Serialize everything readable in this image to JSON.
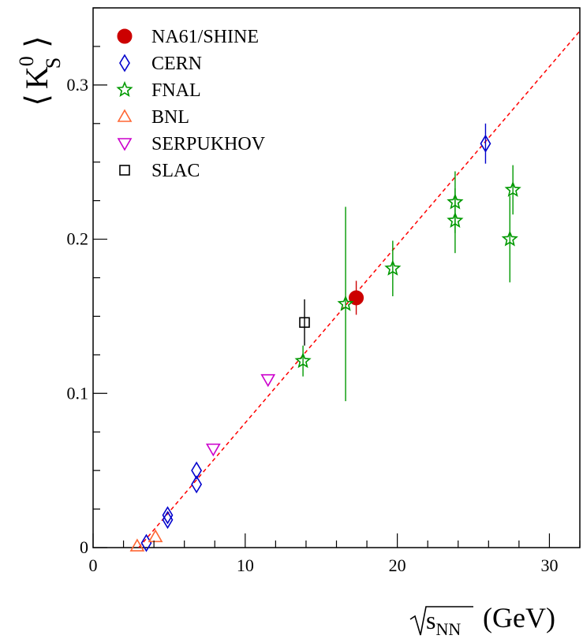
{
  "chart_data": {
    "type": "scatter",
    "title": "",
    "xlabel": {
      "sqrt": "s",
      "sub": "NN",
      "unit": "(GeV)"
    },
    "ylabel": {
      "open": "⟨",
      "main": "K",
      "sup": "0",
      "sub": "S",
      "close": "⟩"
    },
    "xlim": [
      0,
      32
    ],
    "ylim": [
      0,
      0.35
    ],
    "x_ticks": [
      0,
      10,
      20,
      30
    ],
    "x_tick_labels": [
      "0",
      "10",
      "20",
      "30"
    ],
    "y_ticks": [
      0,
      0.1,
      0.2,
      0.3
    ],
    "y_tick_labels": [
      "0",
      "0.1",
      "0.2",
      "0.3"
    ],
    "grid": false,
    "legend_position": "top-left",
    "fit_line": {
      "style": "dashed",
      "color": "#ff0000",
      "points": [
        [
          3.0,
          0.0
        ],
        [
          32.0,
          0.335
        ]
      ]
    },
    "series": [
      {
        "name": "NA61/SHINE",
        "marker": "filled-circle",
        "color": "#cc0000",
        "points": [
          {
            "x": 17.3,
            "y": 0.162,
            "err": 0.011
          }
        ]
      },
      {
        "name": "CERN",
        "marker": "open-diamond",
        "color": "#0000cc",
        "points": [
          {
            "x": 3.5,
            "y": 0.003,
            "err": 0
          },
          {
            "x": 4.9,
            "y": 0.018,
            "err": 0
          },
          {
            "x": 4.9,
            "y": 0.021,
            "err": 0
          },
          {
            "x": 6.8,
            "y": 0.041,
            "err": 0
          },
          {
            "x": 6.8,
            "y": 0.05,
            "err": 0
          },
          {
            "x": 25.8,
            "y": 0.262,
            "err": 0.013
          }
        ]
      },
      {
        "name": "FNAL",
        "marker": "open-star",
        "color": "#009900",
        "points": [
          {
            "x": 13.8,
            "y": 0.121,
            "err": 0.01
          },
          {
            "x": 16.6,
            "y": 0.158,
            "err": 0.063
          },
          {
            "x": 19.7,
            "y": 0.181,
            "err": 0.018
          },
          {
            "x": 23.8,
            "y": 0.212,
            "err": 0.021
          },
          {
            "x": 23.8,
            "y": 0.224,
            "err": 0.02
          },
          {
            "x": 27.4,
            "y": 0.2,
            "err": 0.028
          },
          {
            "x": 27.6,
            "y": 0.232,
            "err": 0.016
          }
        ]
      },
      {
        "name": "BNL",
        "marker": "open-triangle-up",
        "color": "#ff6633",
        "points": [
          {
            "x": 2.9,
            "y": 0.001,
            "err": 0
          },
          {
            "x": 4.1,
            "y": 0.007,
            "err": 0
          }
        ]
      },
      {
        "name": "SERPUKHOV",
        "marker": "open-triangle-down",
        "color": "#cc00cc",
        "points": [
          {
            "x": 7.9,
            "y": 0.064,
            "err": 0
          },
          {
            "x": 11.5,
            "y": 0.109,
            "err": 0
          }
        ]
      },
      {
        "name": "SLAC",
        "marker": "open-square",
        "color": "#000000",
        "points": [
          {
            "x": 13.9,
            "y": 0.146,
            "err": 0.015
          }
        ]
      }
    ]
  }
}
